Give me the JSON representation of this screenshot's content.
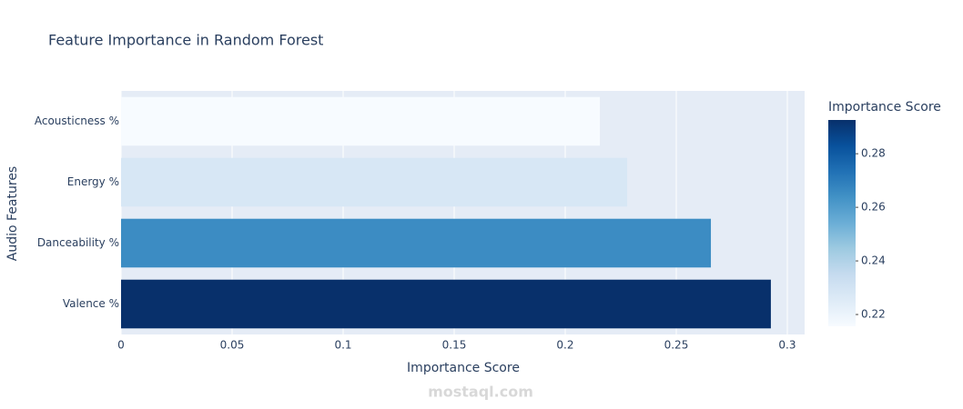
{
  "chart_data": {
    "type": "bar",
    "orientation": "horizontal",
    "title": "Feature Importance in Random Forest",
    "x_label": "Importance Score",
    "y_label": "Audio Features",
    "categories": [
      "Valence %",
      "Danceability %",
      "Energy %",
      "Acousticness %"
    ],
    "values": [
      0.2926,
      0.2656,
      0.2279,
      0.2156
    ],
    "xlim": [
      0,
      0.3078
    ],
    "xticks": [
      0,
      0.05,
      0.1,
      0.15,
      0.2,
      0.25,
      0.3
    ],
    "grid": true,
    "colorscale": [
      "#f7fbff",
      "#deebf7",
      "#c6dbef",
      "#9ecae1",
      "#6baed6",
      "#4292c6",
      "#2171b5",
      "#08519c",
      "#08306b"
    ],
    "colorbar": {
      "title": "Importance Score",
      "ticks": [
        0.22,
        0.24,
        0.26,
        0.28
      ]
    },
    "watermark": "mostaql.com"
  }
}
